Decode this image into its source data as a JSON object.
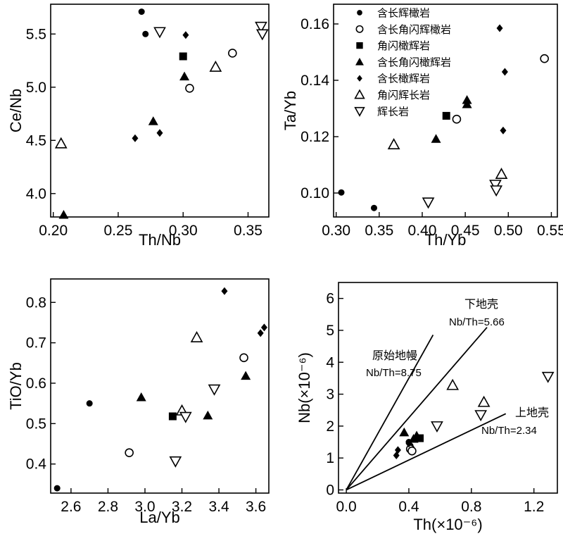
{
  "figure": {
    "legend": [
      {
        "marker": "circle-filled",
        "label": "含长辉橄岩"
      },
      {
        "marker": "circle-open",
        "label": "含长角闪辉橄岩"
      },
      {
        "marker": "square-filled",
        "label": "角闪橄辉岩"
      },
      {
        "marker": "triangle-filled",
        "label": "含长角闪橄辉岩"
      },
      {
        "marker": "diamond-filled",
        "label": "含长橄辉岩"
      },
      {
        "marker": "triangle-open",
        "label": "角闪辉长岩"
      },
      {
        "marker": "triangle-down-open",
        "label": "辉长岩"
      }
    ]
  },
  "chart_data": [
    {
      "id": "ceNb",
      "type": "scatter",
      "xlabel": "Th/Nb",
      "ylabel": "Ce/Nb",
      "xlim": [
        0.198,
        0.366
      ],
      "ylim": [
        3.78,
        5.78
      ],
      "xticks": [
        0.2,
        0.25,
        0.3,
        0.35
      ],
      "xtick_labels": [
        "0.20",
        "0.25",
        "0.30",
        "0.35"
      ],
      "yticks": [
        4.0,
        4.5,
        5.0,
        5.5
      ],
      "ytick_labels": [
        "4.0",
        "4.5",
        "5.0",
        "5.5"
      ],
      "series": [
        {
          "marker": "circle-filled",
          "points": [
            [
              0.268,
              5.71
            ],
            [
              0.271,
              5.5
            ]
          ]
        },
        {
          "marker": "circle-open",
          "points": [
            [
              0.305,
              4.99
            ],
            [
              0.338,
              5.32
            ]
          ]
        },
        {
          "marker": "square-filled",
          "points": [
            [
              0.3,
              5.29
            ]
          ]
        },
        {
          "marker": "triangle-filled",
          "points": [
            [
              0.301,
              5.1
            ],
            [
              0.277,
              4.68
            ],
            [
              0.208,
              3.8
            ]
          ]
        },
        {
          "marker": "diamond-filled",
          "points": [
            [
              0.302,
              5.49
            ],
            [
              0.263,
              4.52
            ],
            [
              0.282,
              4.57
            ]
          ]
        },
        {
          "marker": "triangle-open",
          "points": [
            [
              0.325,
              5.19
            ],
            [
              0.206,
              4.47
            ]
          ]
        },
        {
          "marker": "triangle-down-open",
          "points": [
            [
              0.282,
              5.52
            ],
            [
              0.36,
              5.57
            ],
            [
              0.361,
              5.5
            ]
          ]
        }
      ]
    },
    {
      "id": "taYb",
      "type": "scatter",
      "xlabel": "Th/Yb",
      "ylabel": "Ta/Yb",
      "xlim": [
        0.297,
        0.557
      ],
      "ylim": [
        0.0915,
        0.167
      ],
      "xticks": [
        0.3,
        0.35,
        0.4,
        0.45,
        0.5,
        0.55
      ],
      "xtick_labels": [
        "0.30",
        "0.35",
        "0.40",
        "0.45",
        "0.50",
        "0.55"
      ],
      "yticks": [
        0.1,
        0.12,
        0.14,
        0.16
      ],
      "ytick_labels": [
        "0.10",
        "0.12",
        "0.14",
        "0.16"
      ],
      "series": [
        {
          "marker": "circle-filled",
          "points": [
            [
              0.306,
              0.1002
            ],
            [
              0.344,
              0.0947
            ]
          ]
        },
        {
          "marker": "circle-open",
          "points": [
            [
              0.44,
              0.1262
            ],
            [
              0.542,
              0.1477
            ]
          ]
        },
        {
          "marker": "square-filled",
          "points": [
            [
              0.428,
              0.1274
            ]
          ]
        },
        {
          "marker": "triangle-filled",
          "points": [
            [
              0.416,
              0.1192
            ],
            [
              0.452,
              0.133
            ],
            [
              0.452,
              0.1315
            ]
          ]
        },
        {
          "marker": "diamond-filled",
          "points": [
            [
              0.49,
              0.1585
            ],
            [
              0.496,
              0.143
            ],
            [
              0.494,
              0.1222
            ]
          ]
        },
        {
          "marker": "triangle-open",
          "points": [
            [
              0.367,
              0.1172
            ],
            [
              0.492,
              0.1067
            ]
          ]
        },
        {
          "marker": "triangle-down-open",
          "points": [
            [
              0.407,
              0.0967
            ],
            [
              0.485,
              0.103
            ],
            [
              0.486,
              0.101
            ]
          ]
        }
      ]
    },
    {
      "id": "tio2Yb",
      "type": "scatter",
      "xlabel": "La/Yb",
      "ylabel": "TiO/Yb",
      "xlim": [
        2.49,
        3.67
      ],
      "ylim": [
        0.328,
        0.858
      ],
      "xticks": [
        2.6,
        2.8,
        3.0,
        3.2,
        3.4,
        3.6
      ],
      "xtick_labels": [
        "2.6",
        "2.8",
        "3.0",
        "3.2",
        "3.4",
        "3.6"
      ],
      "yticks": [
        0.4,
        0.5,
        0.6,
        0.7,
        0.8
      ],
      "ytick_labels": [
        "0.4",
        "0.5",
        "0.6",
        "0.7",
        "0.8"
      ],
      "series": [
        {
          "marker": "circle-filled",
          "points": [
            [
              2.525,
              0.34
            ],
            [
              2.7,
              0.55
            ]
          ]
        },
        {
          "marker": "circle-open",
          "points": [
            [
              2.915,
              0.428
            ],
            [
              3.535,
              0.663
            ]
          ]
        },
        {
          "marker": "square-filled",
          "points": [
            [
              3.15,
              0.518
            ]
          ]
        },
        {
          "marker": "triangle-filled",
          "points": [
            [
              2.98,
              0.565
            ],
            [
              3.34,
              0.52
            ],
            [
              3.545,
              0.618
            ]
          ]
        },
        {
          "marker": "diamond-filled",
          "points": [
            [
              3.43,
              0.828
            ],
            [
              3.625,
              0.724
            ],
            [
              3.645,
              0.738
            ]
          ]
        },
        {
          "marker": "triangle-open",
          "points": [
            [
              3.28,
              0.713
            ],
            [
              3.2,
              0.532
            ]
          ]
        },
        {
          "marker": "triangle-down-open",
          "points": [
            [
              3.22,
              0.517
            ],
            [
              3.375,
              0.585
            ],
            [
              3.165,
              0.407
            ]
          ]
        }
      ]
    },
    {
      "id": "nbTh",
      "type": "scatter",
      "xlabel": "Th(×10⁻⁶)",
      "ylabel": "Nb(×10⁻⁶)",
      "xlim": [
        -0.05,
        1.35
      ],
      "ylim": [
        -0.1,
        6.5
      ],
      "xticks": [
        0.0,
        0.4,
        0.8,
        1.2
      ],
      "xtick_labels": [
        "0.0",
        "0.4",
        "0.8",
        "1.2"
      ],
      "yticks": [
        0,
        1,
        2,
        3,
        4,
        5,
        6
      ],
      "ytick_labels": [
        "0",
        "1",
        "2",
        "3",
        "4",
        "5",
        "6"
      ],
      "reference_lines": [
        {
          "name": "原始地幔",
          "ratio_label": "Nb/Th=8.75",
          "slope": 8.75
        },
        {
          "name": "下地壳",
          "ratio_label": "Nb/Th=5.66",
          "slope": 5.66
        },
        {
          "name": "上地壳",
          "ratio_label": "Nb/Th=2.34",
          "slope": 2.34
        }
      ],
      "series": [
        {
          "marker": "circle-filled",
          "points": [
            [
              0.4,
              1.5
            ],
            [
              0.41,
              1.38
            ]
          ]
        },
        {
          "marker": "circle-open",
          "points": [
            [
              0.41,
              1.28
            ],
            [
              0.42,
              1.22
            ]
          ]
        },
        {
          "marker": "square-filled",
          "points": [
            [
              0.47,
              1.62
            ]
          ]
        },
        {
          "marker": "triangle-filled",
          "points": [
            [
              0.37,
              1.8
            ],
            [
              0.43,
              1.6
            ],
            [
              0.45,
              1.7
            ]
          ]
        },
        {
          "marker": "diamond-filled",
          "points": [
            [
              0.32,
              1.08
            ],
            [
              0.33,
              1.25
            ],
            [
              0.4,
              1.45
            ]
          ]
        },
        {
          "marker": "triangle-open",
          "points": [
            [
              0.68,
              3.28
            ],
            [
              0.88,
              2.75
            ]
          ]
        },
        {
          "marker": "triangle-down-open",
          "points": [
            [
              0.58,
              2.0
            ],
            [
              0.86,
              2.35
            ],
            [
              1.29,
              3.55
            ]
          ]
        }
      ]
    }
  ]
}
